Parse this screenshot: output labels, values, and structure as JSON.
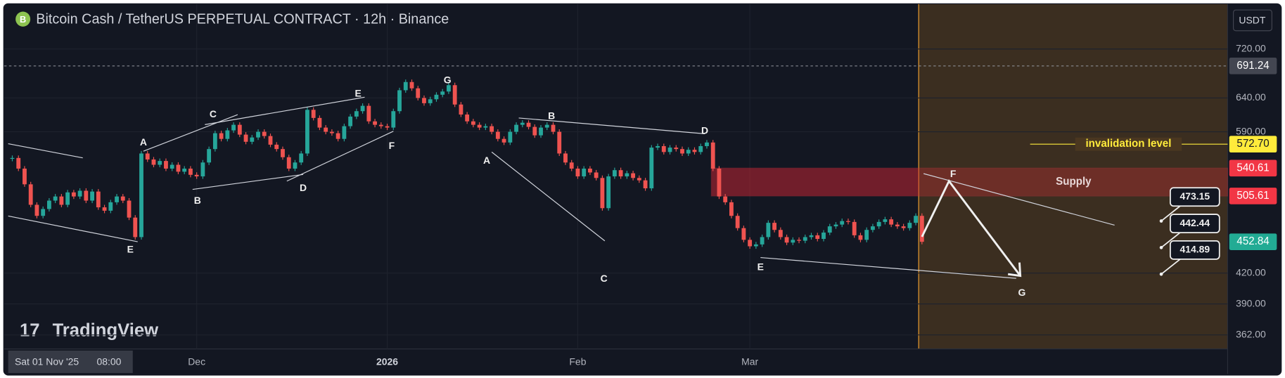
{
  "header": {
    "title": "Bitcoin Cash / TetherUS PERPETUAL CONTRACT · 12h · Binance",
    "currency": "USDT",
    "watermark": "TradingView"
  },
  "chart_data": {
    "type": "candlestick",
    "categories": [
      null,
      null,
      null,
      null,
      null,
      null,
      null,
      null,
      null,
      null,
      null,
      null,
      null,
      null,
      null,
      null,
      null,
      null,
      null,
      null,
      null,
      null,
      null,
      null,
      null,
      null,
      null,
      null,
      null,
      null,
      "Dec",
      null,
      null,
      null,
      null,
      null,
      null,
      null,
      null,
      null,
      null,
      null,
      null,
      null,
      null,
      null,
      null,
      null,
      null,
      null,
      null,
      null,
      null,
      null,
      null,
      null,
      null,
      null,
      null,
      null,
      null,
      "2026",
      null,
      null,
      null,
      null,
      null,
      null,
      null,
      null,
      null,
      null,
      null,
      null,
      null,
      null,
      null,
      null,
      null,
      null,
      null,
      null,
      null,
      null,
      null,
      null,
      null,
      null,
      null,
      null,
      null,
      null,
      "Feb",
      null,
      null,
      null,
      null,
      null,
      null,
      null,
      null,
      null,
      null,
      null,
      null,
      null,
      null,
      null,
      null,
      null,
      null,
      null,
      null,
      null,
      null,
      null,
      null,
      null,
      null,
      null,
      "Mar",
      null,
      null,
      null,
      null,
      null,
      null,
      null,
      null,
      null,
      null,
      null,
      null,
      null,
      null,
      null,
      null,
      null,
      null,
      null,
      null,
      null,
      null,
      null,
      null,
      null,
      null,
      null,
      null
    ],
    "values": [
      554,
      540,
      520,
      495,
      482,
      490,
      500,
      505,
      495,
      510,
      505,
      512,
      500,
      511,
      492,
      488,
      498,
      505,
      500,
      480,
      458,
      560,
      552,
      545,
      550,
      540,
      545,
      536,
      540,
      532,
      530,
      548,
      566,
      588,
      580,
      592,
      600,
      586,
      576,
      582,
      590,
      584,
      572,
      566,
      555,
      540,
      548,
      560,
      622,
      610,
      596,
      590,
      588,
      580,
      598,
      612,
      620,
      628,
      605,
      600,
      598,
      596,
      620,
      652,
      665,
      655,
      640,
      632,
      638,
      645,
      650,
      660,
      630,
      615,
      605,
      600,
      596,
      598,
      590,
      580,
      575,
      590,
      600,
      603,
      597,
      585,
      596,
      600,
      590,
      560,
      548,
      540,
      530,
      540,
      535,
      528,
      491,
      530,
      538,
      530,
      534,
      528,
      525,
      515,
      568,
      570,
      562,
      568,
      566,
      560,
      565,
      562,
      570,
      575,
      540,
      505,
      498,
      482,
      468,
      455,
      448,
      450,
      458,
      474,
      466,
      458,
      452,
      455,
      454,
      458,
      460,
      456,
      463,
      470,
      472,
      476,
      475,
      460,
      455,
      466,
      470,
      475,
      478,
      472,
      470,
      468,
      474,
      482,
      452.84
    ],
    "up_color": "#26a69a",
    "down_color": "#ef5350",
    "x_cursor_date": "Sat 01 Nov '25",
    "x_cursor_time": "08:00",
    "ylim": [
      350,
      794
    ],
    "log_scale": true,
    "grid": true,
    "yticks": [
      {
        "value": 720,
        "label": "720.00"
      },
      {
        "value": 640,
        "label": "640.00"
      },
      {
        "value": 590,
        "label": "590.00"
      },
      {
        "value": 420,
        "label": "420.00"
      },
      {
        "value": 390,
        "label": "390.00"
      },
      {
        "value": 362,
        "label": "362.00"
      }
    ],
    "price_labels": [
      {
        "value": 691.24,
        "label": "691.24",
        "color": "#434651"
      },
      {
        "value": 572.7,
        "label": "572.70",
        "color": "#ffeb3b"
      },
      {
        "value": 540.61,
        "label": "540.61",
        "color": "#f23645"
      },
      {
        "value": 505.61,
        "label": "505.61",
        "color": "#f23645"
      },
      {
        "value": 452.84,
        "label": "452.84",
        "color": "#22ab94"
      }
    ],
    "annotations": {
      "invalidation_label": "invalidation level",
      "supply_label": "Supply",
      "targets": [
        473.15,
        442.44,
        414.89
      ],
      "wave_labels": [
        "E",
        "A",
        "B",
        "C",
        "D",
        "E",
        "F",
        "G",
        "A",
        "B",
        "C",
        "D",
        "E",
        "F",
        "G"
      ]
    }
  }
}
